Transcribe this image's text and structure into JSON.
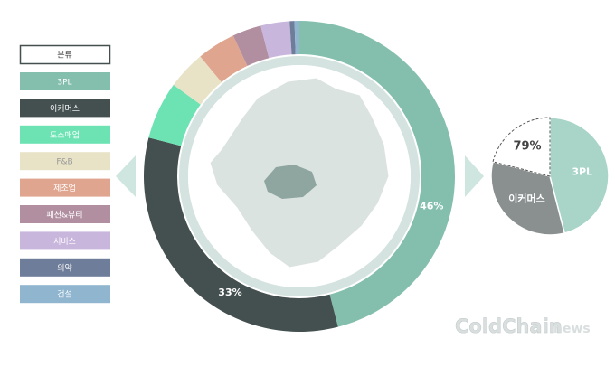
{
  "chart_data": [
    {
      "type": "donut",
      "legend_title": "분류",
      "categories": [
        "3PL",
        "이커머스",
        "도소매업",
        "F&B",
        "제조업",
        "패션&뷰티",
        "서비스",
        "의약",
        "건설"
      ],
      "values": [
        46,
        33,
        6,
        4,
        4,
        3,
        3,
        0.5,
        0.5
      ],
      "value_labels": [
        "46%",
        "33%",
        null,
        null,
        null,
        null,
        null,
        null,
        null
      ],
      "colors": [
        "#84bfae",
        "#444f4f",
        "#6de3b4",
        "#e8e3c6",
        "#e0a58e",
        "#b18fa0",
        "#c9b6dc",
        "#6e7d99",
        "#8fb5cf"
      ]
    },
    {
      "type": "pie",
      "annotation": "79%",
      "categories": [
        "3PL",
        "이커머스",
        null
      ],
      "values": [
        46,
        33,
        21
      ],
      "colors": [
        "#a8d5c8",
        "#8a8f8f",
        "#ffffff"
      ]
    }
  ],
  "watermark": {
    "brand": "ColdChain",
    "suffix": "news"
  }
}
